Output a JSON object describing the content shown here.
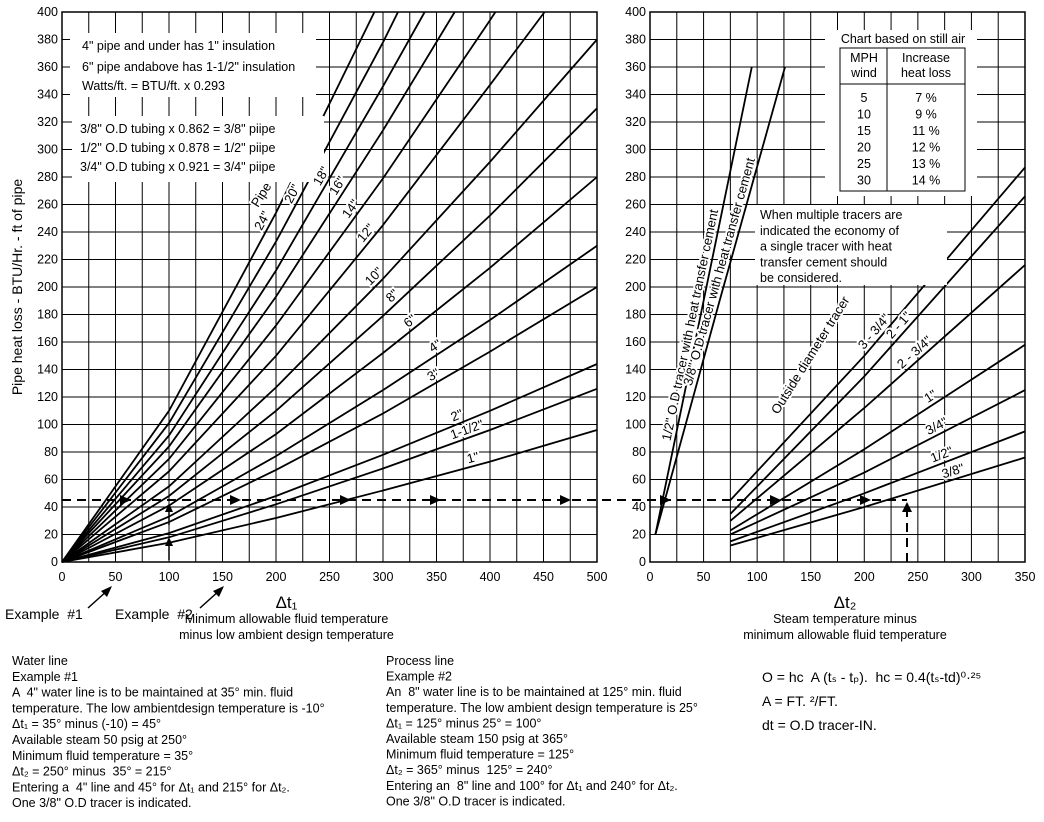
{
  "chart_data": [
    {
      "type": "line",
      "y_label": "Pipe heat loss - BTU/Hr. - ft of pipe",
      "x_label": "Δt₁",
      "x_sublabel": [
        "Minimum allowable fluid temperature",
        "minus low ambient design temperature"
      ],
      "xlim": [
        0,
        500
      ],
      "ylim": [
        0,
        400
      ],
      "xticks": [
        0,
        50,
        100,
        150,
        200,
        250,
        300,
        350,
        400,
        450,
        500
      ],
      "xgrid": [
        25,
        75,
        125,
        175,
        225,
        275,
        325,
        375,
        425,
        475
      ],
      "yticks": [
        0,
        20,
        40,
        60,
        80,
        100,
        120,
        140,
        160,
        180,
        200,
        220,
        240,
        260,
        280,
        300,
        320,
        340,
        360,
        380,
        400
      ],
      "grid": true,
      "color": "#000000",
      "notes": [
        "4\" pipe and under has 1\" insulation",
        "6\" pipe andabove has 1-1/2\" insulation",
        "Watts/ft. = BTU/ft. x 0.293"
      ],
      "tubing_notes": [
        "3/8\" O.D tubing x 0.862 = 3/8\" piipe",
        "1/2\" O.D tubing x 0.878 = 1/2\" piipe",
        "3/4\" O.D tubing x 0.921 = 3/4\" piipe"
      ],
      "series_label": "Pipe",
      "examples": [
        "Example  #1",
        "Example  #2"
      ],
      "series": [
        {
          "name": "24\"",
          "x": [
            0,
            100,
            200,
            292
          ],
          "values": [
            0,
            110,
            254,
            400
          ]
        },
        {
          "name": "20\"",
          "x": [
            0,
            100,
            200,
            300,
            314
          ],
          "values": [
            0,
            101,
            233,
            378,
            400
          ]
        },
        {
          "name": "18\"",
          "x": [
            0,
            100,
            200,
            300,
            339
          ],
          "values": [
            0,
            92,
            212,
            346,
            400
          ]
        },
        {
          "name": "16\"",
          "x": [
            0,
            100,
            200,
            300,
            367
          ],
          "values": [
            0,
            84,
            193,
            314,
            400
          ]
        },
        {
          "name": "14\"",
          "x": [
            0,
            100,
            200,
            300,
            400,
            405
          ],
          "values": [
            0,
            75,
            172,
            279,
            394,
            400
          ]
        },
        {
          "name": "12\"",
          "x": [
            0,
            100,
            200,
            300,
            400,
            451
          ],
          "values": [
            0,
            66,
            150,
            245,
            347,
            400
          ]
        },
        {
          "name": "10\"",
          "x": [
            0,
            100,
            200,
            300,
            400,
            500
          ],
          "values": [
            0,
            55,
            127,
            206,
            291,
            380
          ]
        },
        {
          "name": "8\"",
          "x": [
            0,
            100,
            200,
            300,
            400,
            500
          ],
          "values": [
            0,
            48,
            110,
            179,
            252,
            330
          ]
        },
        {
          "name": "6\"",
          "x": [
            0,
            100,
            200,
            300,
            400,
            500
          ],
          "values": [
            0,
            41,
            93,
            152,
            214,
            280
          ]
        },
        {
          "name": "4\"",
          "x": [
            0,
            100,
            200,
            300,
            400,
            500
          ],
          "values": [
            0,
            33,
            77,
            125,
            176,
            230
          ]
        },
        {
          "name": "3\"",
          "x": [
            0,
            100,
            200,
            300,
            400,
            500
          ],
          "values": [
            0,
            29,
            67,
            108,
            153,
            200
          ]
        },
        {
          "name": "2\"",
          "x": [
            0,
            100,
            200,
            300,
            400,
            500
          ],
          "values": [
            0,
            21,
            48,
            78,
            110,
            144
          ]
        },
        {
          "name": "1-1/2\"",
          "x": [
            0,
            100,
            200,
            300,
            400,
            500
          ],
          "values": [
            0,
            18,
            42,
            68,
            96,
            126
          ]
        },
        {
          "name": "1\"",
          "x": [
            0,
            100,
            200,
            300,
            400,
            500
          ],
          "values": [
            0,
            14,
            32,
            52,
            73,
            96
          ]
        }
      ]
    },
    {
      "type": "line",
      "x_label": "Δt₂",
      "x_sublabel": [
        "Steam temperature minus",
        "minimum allowable fluid temperature"
      ],
      "xlim": [
        0,
        350
      ],
      "ylim": [
        0,
        400
      ],
      "xticks": [
        0,
        50,
        100,
        150,
        200,
        250,
        300,
        350
      ],
      "xgrid": [
        25,
        75,
        125,
        175,
        225,
        275,
        325
      ],
      "yticks": [
        0,
        20,
        40,
        60,
        80,
        100,
        120,
        140,
        160,
        180,
        200,
        220,
        240,
        260,
        280,
        300,
        320,
        340,
        360,
        380,
        400
      ],
      "grid": true,
      "color": "#000000",
      "table": {
        "title": "Chart based on still air",
        "header": [
          [
            "MPH",
            "wind"
          ],
          [
            "Increase",
            "heat loss"
          ]
        ],
        "rows": [
          [
            "5",
            "7 %"
          ],
          [
            "10",
            "9 %"
          ],
          [
            "15",
            "11 %"
          ],
          [
            "20",
            "12 %"
          ],
          [
            "25",
            "13 %"
          ],
          [
            "30",
            "14 %"
          ]
        ]
      },
      "note": [
        "When multiple tracers are",
        "indicated the economy of",
        "a single tracer with heat",
        "transfer cement should",
        "be considered."
      ],
      "series_label": "Outside diameter tracer",
      "series": [
        {
          "name": "1/2\" O.D tracer with heat transfer cement",
          "x": [
            5,
            50,
            95
          ],
          "values": [
            20,
            190,
            360
          ]
        },
        {
          "name": "3/8\" O.D tracer with heat transfer cement",
          "x": [
            5,
            65,
            126
          ],
          "values": [
            20,
            190,
            360
          ]
        },
        {
          "name": "3 - 3/4\"",
          "x": [
            75,
            200,
            350
          ],
          "values": [
            45,
            150,
            287
          ]
        },
        {
          "name": "2 - 1\"",
          "x": [
            75,
            200,
            350
          ],
          "values": [
            35,
            135,
            266
          ]
        },
        {
          "name": "2 - 3/4\"",
          "x": [
            75,
            200,
            350
          ],
          "values": [
            30,
            112,
            216
          ]
        },
        {
          "name": "1\"",
          "x": [
            75,
            200,
            350
          ],
          "values": [
            23,
            82,
            158
          ]
        },
        {
          "name": "3/4\"",
          "x": [
            75,
            200,
            350
          ],
          "values": [
            20,
            65,
            125
          ]
        },
        {
          "name": "1/2\"",
          "x": [
            75,
            200,
            350
          ],
          "values": [
            15,
            50,
            95
          ]
        },
        {
          "name": "3/8\"",
          "x": [
            75,
            200,
            350
          ],
          "values": [
            12,
            40,
            76
          ]
        }
      ]
    }
  ],
  "notes": {
    "water": [
      "Water line",
      "Example #1",
      "A  4\" water line is to be maintained at 35° min. fluid",
      "temperature. The low ambientdesign temperature is -10°",
      "Δt₁ = 35° minus (-10) = 45°",
      "Available steam 50 psig at 250°",
      "Minimum fluid temperature = 35°",
      "Δt₂ = 250° minus  35° = 215°",
      "Entering a  4\" line and 45° for Δt₁ and 215° for Δt₂.",
      "One 3/8\" O.D tracer is indicated."
    ],
    "process": [
      "Process line",
      "Example #2",
      "An  8\" water line is to be maintained at 125° min. fluid",
      "temperature. The low ambient design temperature is 25°",
      "Δt₁ = 125° minus 25° = 100°",
      "Available steam 150 psig at 365°",
      "Minimum fluid temperature = 125°",
      "Δt₂ = 365° minus  125° = 240°",
      "Entering an  8\" line and 100° for Δt₁ and 240° for Δt₂.",
      "One 3/8\" O.D tracer is indicated."
    ],
    "formulas": [
      "O = hc  A (tₛ - tₚ).  hc = 0.4(tₛ-td)⁰·²⁵",
      "A = FT. ²/FT.",
      "dt = O.D tracer-IN."
    ]
  }
}
